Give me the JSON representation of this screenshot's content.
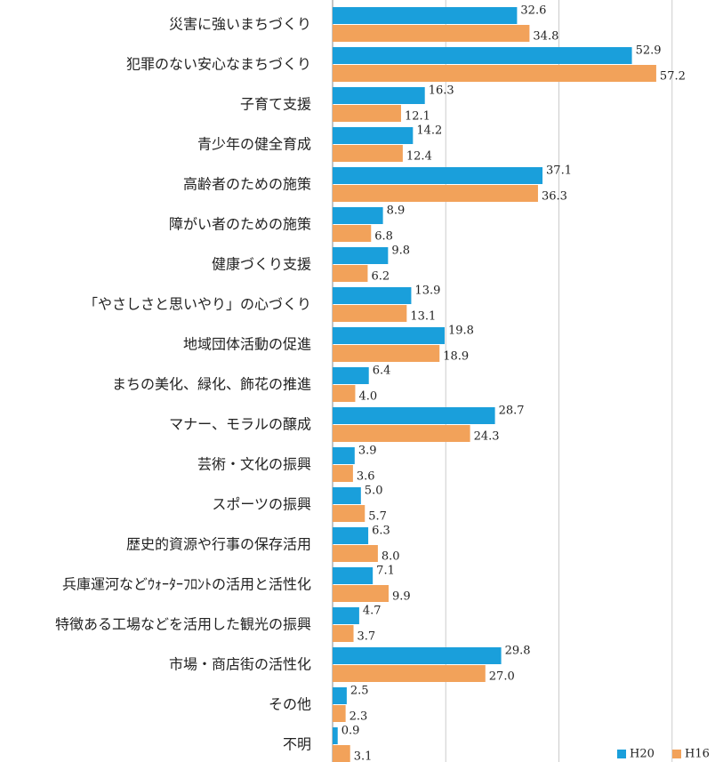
{
  "chart_data": {
    "type": "bar",
    "orientation": "horizontal",
    "categories": [
      "災害に強いまちづくり",
      "犯罪のない安心なまちづくり",
      "子育て支援",
      "青少年の健全育成",
      "高齢者のための施策",
      "障がい者のための施策",
      "健康づくり支援",
      "「やさしさと思いやり」の心づくり",
      "地域団体活動の促進",
      "まちの美化、緑化、飾花の推進",
      "マナー、モラルの醸成",
      "芸術・文化の振興",
      "スポーツの振興",
      "歴史的資源や行事の保存活用",
      "兵庫運河などｳｫｰﾀｰﾌﾛﾝﾄの活用と活性化",
      "特徴ある工場などを活用した観光の振興",
      "市場・商店街の活性化",
      "その他",
      "不明"
    ],
    "series": [
      {
        "name": "H20",
        "color": "#1a9fdb",
        "values": [
          32.6,
          52.9,
          16.3,
          14.2,
          37.1,
          8.9,
          9.8,
          13.9,
          19.8,
          6.4,
          28.7,
          3.9,
          5.0,
          6.3,
          7.1,
          4.7,
          29.8,
          2.5,
          0.9
        ],
        "value_labels": [
          "32.6",
          "52.9",
          "16.3",
          "14.2",
          "37.1",
          "8.9",
          "9.8",
          "13.9",
          "19.8",
          "6.4",
          "28.7",
          "3.9",
          "5.0",
          "6.3",
          "7.1",
          "4.7",
          "29.8",
          "2.5",
          "0.9"
        ]
      },
      {
        "name": "H16",
        "color": "#f2a25a",
        "values": [
          34.8,
          57.2,
          12.1,
          12.4,
          36.3,
          6.8,
          6.2,
          13.1,
          18.9,
          4.0,
          24.3,
          3.6,
          5.7,
          8.0,
          9.9,
          3.7,
          27.0,
          2.3,
          3.1
        ],
        "value_labels": [
          "34.8",
          "57.2",
          "12.1",
          "12.4",
          "36.3",
          "6.8",
          "6.2",
          "13.1",
          "18.9",
          "4.0",
          "24.3",
          "3.6",
          "5.7",
          "8.0",
          "9.9",
          "3.7",
          "27.0",
          "2.3",
          "3.1"
        ]
      }
    ],
    "xlim": [
      0,
      69
    ],
    "xticks": [
      0,
      20,
      40,
      60
    ],
    "grid": true,
    "legend": "lower right"
  }
}
